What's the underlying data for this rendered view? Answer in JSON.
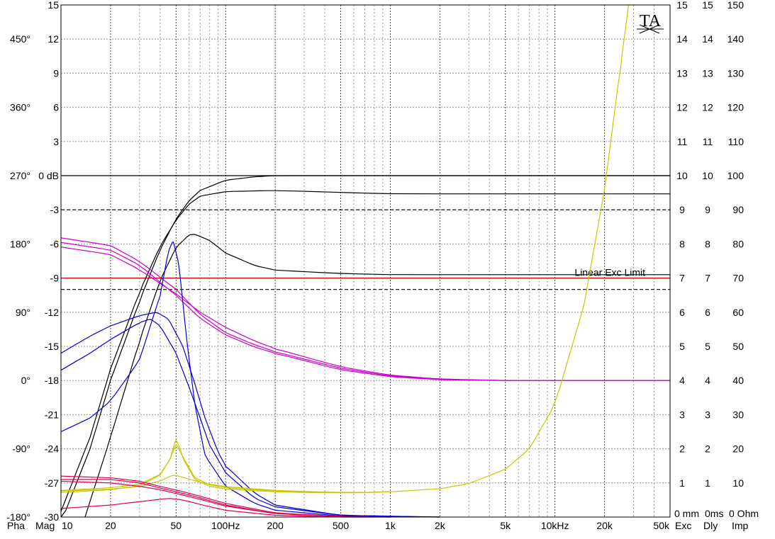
{
  "chart_data": {
    "type": "line",
    "title": "",
    "xscale": "log",
    "xlim": [
      10,
      50000
    ],
    "x_ticks": [
      {
        "v": 10,
        "label": "10"
      },
      {
        "v": 20,
        "label": "20"
      },
      {
        "v": 50,
        "label": "50"
      },
      {
        "v": 100,
        "label": "100Hz"
      },
      {
        "v": 200,
        "label": "200"
      },
      {
        "v": 500,
        "label": "500"
      },
      {
        "v": 1000,
        "label": "1k"
      },
      {
        "v": 2000,
        "label": "2k"
      },
      {
        "v": 5000,
        "label": "5k"
      },
      {
        "v": 10000,
        "label": "10kHz"
      },
      {
        "v": 20000,
        "label": "20k"
      },
      {
        "v": 50000,
        "label": "50k"
      }
    ],
    "mag_axis": {
      "label": "Mag",
      "ylim": [
        -30,
        15
      ],
      "ticks": [
        "15",
        "12",
        "9",
        "6",
        "3",
        "0 dB",
        "-3",
        "-6",
        "-9",
        "-12",
        "-15",
        "-18",
        "-21",
        "-24",
        "-27",
        "-30"
      ]
    },
    "phase_axis": {
      "label": "Pha",
      "ylim": [
        -180,
        495
      ],
      "ticks": [
        {
          "v": 450,
          "label": "450°"
        },
        {
          "v": 360,
          "label": "360°"
        },
        {
          "v": 270,
          "label": "270°"
        },
        {
          "v": 180,
          "label": "180°"
        },
        {
          "v": 90,
          "label": "90°"
        },
        {
          "v": 0,
          "label": "0°"
        },
        {
          "v": -90,
          "label": "-90°"
        },
        {
          "v": -180,
          "label": "-180°"
        }
      ]
    },
    "exc_axis": {
      "label": "Exc",
      "unit_label": "0 mm",
      "ticks": [
        "15",
        "14",
        "13",
        "12",
        "11",
        "10",
        "9",
        "8",
        "7",
        "6",
        "5",
        "4",
        "3",
        "2",
        "1"
      ]
    },
    "dly_axis": {
      "label": "Dly",
      "unit_label": "0ms",
      "ticks": [
        "15",
        "14",
        "13",
        "12",
        "11",
        "10",
        "9",
        "8",
        "7",
        "6",
        "5",
        "4",
        "3",
        "2",
        "1"
      ]
    },
    "imp_axis": {
      "label": "Imp",
      "unit_label": "0 Ohm",
      "ticks": [
        "150",
        "140",
        "130",
        "120",
        "110",
        "100",
        "90",
        "80",
        "70",
        "60",
        "50",
        "40",
        "30",
        "20",
        "10"
      ]
    },
    "grid": true,
    "logo": "TA",
    "reference_lines": [
      {
        "y_db": 0,
        "style": "solid",
        "color": "#000000"
      },
      {
        "y_db": -3,
        "style": "dashed",
        "color": "#000000"
      },
      {
        "y_db": -10,
        "style": "dashed",
        "color": "#000000"
      },
      {
        "y_db": -9,
        "style": "solid",
        "color": "#cc0000",
        "label": "Linear Exc Limit",
        "label_color": "#cc0033"
      }
    ],
    "colors": {
      "magnitude": "#000000",
      "phase": "#cc00cc",
      "delay": "#0000dd",
      "impedance": "#c8c800",
      "excursion": "#dd0055",
      "limit": "#cc0000",
      "grid": "#999999"
    },
    "series": [
      {
        "group": "magnitude",
        "unit": "dB",
        "points": [
          [
            10,
            -30.5
          ],
          [
            15,
            -24
          ],
          [
            20,
            -18
          ],
          [
            30,
            -11
          ],
          [
            40,
            -6.5
          ],
          [
            50,
            -3.8
          ],
          [
            60,
            -2.2
          ],
          [
            70,
            -1.3
          ],
          [
            100,
            -0.4
          ],
          [
            150,
            -0.1
          ],
          [
            200,
            0
          ],
          [
            1000,
            0
          ],
          [
            50000,
            0
          ]
        ]
      },
      {
        "group": "magnitude",
        "unit": "dB",
        "points": [
          [
            10,
            -29.5
          ],
          [
            15,
            -23
          ],
          [
            20,
            -17
          ],
          [
            30,
            -10.2
          ],
          [
            40,
            -6.2
          ],
          [
            50,
            -3.9
          ],
          [
            60,
            -2.5
          ],
          [
            70,
            -1.8
          ],
          [
            100,
            -1.4
          ],
          [
            200,
            -1.3
          ],
          [
            1000,
            -1.6
          ],
          [
            50000,
            -1.6
          ]
        ]
      },
      {
        "group": "magnitude",
        "unit": "dB",
        "points": [
          [
            14,
            -30
          ],
          [
            20,
            -23
          ],
          [
            30,
            -14.5
          ],
          [
            40,
            -9.2
          ],
          [
            50,
            -6.3
          ],
          [
            60,
            -5.2
          ],
          [
            65,
            -5.15
          ],
          [
            80,
            -5.7
          ],
          [
            100,
            -6.8
          ],
          [
            150,
            -7.9
          ],
          [
            200,
            -8.3
          ],
          [
            500,
            -8.6
          ],
          [
            1000,
            -8.7
          ],
          [
            50000,
            -8.7
          ]
        ]
      },
      {
        "group": "phase",
        "unit": "deg",
        "points": [
          [
            10,
            182
          ],
          [
            20,
            172
          ],
          [
            30,
            152
          ],
          [
            50,
            112
          ],
          [
            70,
            82
          ],
          [
            100,
            60
          ],
          [
            150,
            44
          ],
          [
            200,
            36
          ],
          [
            500,
            14
          ],
          [
            1000,
            5
          ],
          [
            2000,
            1
          ],
          [
            5000,
            0
          ],
          [
            50000,
            0
          ]
        ]
      },
      {
        "group": "phase",
        "unit": "deg",
        "points": [
          [
            10,
            188
          ],
          [
            20,
            178
          ],
          [
            30,
            157
          ],
          [
            50,
            120
          ],
          [
            70,
            87
          ],
          [
            100,
            63
          ],
          [
            150,
            47
          ],
          [
            200,
            38
          ],
          [
            500,
            16
          ],
          [
            1000,
            6
          ],
          [
            2000,
            1
          ],
          [
            5000,
            0
          ],
          [
            50000,
            0
          ]
        ]
      },
      {
        "group": "phase",
        "unit": "deg",
        "points": [
          [
            10,
            176
          ],
          [
            20,
            166
          ],
          [
            30,
            146
          ],
          [
            50,
            114
          ],
          [
            70,
            90
          ],
          [
            100,
            70
          ],
          [
            150,
            52
          ],
          [
            200,
            42
          ],
          [
            500,
            18
          ],
          [
            1000,
            7
          ],
          [
            2000,
            2
          ],
          [
            5000,
            0
          ],
          [
            50000,
            0
          ]
        ]
      },
      {
        "group": "delay",
        "unit": "ms",
        "points": [
          [
            10,
            4.3
          ],
          [
            15,
            4.8
          ],
          [
            20,
            5.2
          ],
          [
            30,
            5.7
          ],
          [
            35,
            5.8
          ],
          [
            40,
            5.6
          ],
          [
            50,
            4.8
          ],
          [
            60,
            3.8
          ],
          [
            70,
            2.9
          ],
          [
            80,
            2.1
          ],
          [
            100,
            1.3
          ],
          [
            150,
            0.55
          ],
          [
            200,
            0.3
          ],
          [
            500,
            0.05
          ],
          [
            2000,
            0
          ]
        ]
      },
      {
        "group": "delay",
        "unit": "ms",
        "points": [
          [
            10,
            4.8
          ],
          [
            15,
            5.3
          ],
          [
            20,
            5.6
          ],
          [
            30,
            5.9
          ],
          [
            38,
            6.0
          ],
          [
            45,
            5.8
          ],
          [
            55,
            5.0
          ],
          [
            65,
            3.9
          ],
          [
            75,
            2.9
          ],
          [
            90,
            1.9
          ],
          [
            100,
            1.5
          ],
          [
            150,
            0.7
          ],
          [
            200,
            0.35
          ],
          [
            500,
            0.05
          ],
          [
            2000,
            0
          ]
        ]
      },
      {
        "group": "delay",
        "unit": "ms",
        "points": [
          [
            10,
            2.5
          ],
          [
            15,
            2.9
          ],
          [
            20,
            3.4
          ],
          [
            30,
            4.6
          ],
          [
            40,
            6.5
          ],
          [
            45,
            7.8
          ],
          [
            48,
            8.1
          ],
          [
            52,
            7.4
          ],
          [
            58,
            5.2
          ],
          [
            65,
            3.3
          ],
          [
            75,
            1.8
          ],
          [
            100,
            0.9
          ],
          [
            150,
            0.4
          ],
          [
            200,
            0.2
          ],
          [
            500,
            0.03
          ],
          [
            2000,
            0
          ]
        ]
      },
      {
        "group": "impedance",
        "unit": "ohm",
        "points": [
          [
            10,
            7.8
          ],
          [
            20,
            8.6
          ],
          [
            30,
            9.6
          ],
          [
            40,
            12.5
          ],
          [
            46,
            17
          ],
          [
            50,
            23
          ],
          [
            56,
            16.5
          ],
          [
            65,
            11
          ],
          [
            80,
            9
          ],
          [
            100,
            8.2
          ],
          [
            200,
            7.4
          ],
          [
            400,
            7.1
          ],
          [
            700,
            7.15
          ],
          [
            1000,
            7.4
          ],
          [
            2000,
            8.3
          ],
          [
            3000,
            9.8
          ],
          [
            5000,
            14
          ],
          [
            7000,
            20
          ],
          [
            10000,
            33
          ],
          [
            15000,
            62
          ],
          [
            20000,
            96
          ],
          [
            25000,
            132
          ],
          [
            28000,
            150
          ]
        ]
      },
      {
        "group": "impedance",
        "unit": "ohm",
        "points": [
          [
            10,
            7.2
          ],
          [
            20,
            8.0
          ],
          [
            30,
            9.2
          ],
          [
            40,
            12.3
          ],
          [
            46,
            17
          ],
          [
            50,
            21.5
          ],
          [
            56,
            17
          ],
          [
            65,
            11.5
          ],
          [
            80,
            9.4
          ],
          [
            100,
            8.6
          ],
          [
            200,
            7.6
          ],
          [
            400,
            7.2
          ],
          [
            700,
            7.2
          ],
          [
            1000,
            7.45
          ]
        ]
      },
      {
        "group": "impedance",
        "unit": "ohm",
        "points": [
          [
            10,
            7.6
          ],
          [
            20,
            8.2
          ],
          [
            30,
            8.9
          ],
          [
            40,
            10.6
          ],
          [
            48,
            12.3
          ],
          [
            52,
            12
          ],
          [
            60,
            11.1
          ],
          [
            70,
            10.2
          ],
          [
            80,
            9.6
          ],
          [
            100,
            8.9
          ],
          [
            200,
            7.8
          ],
          [
            400,
            7.3
          ],
          [
            700,
            7.2
          ],
          [
            1000,
            7.45
          ]
        ]
      },
      {
        "group": "excursion",
        "unit": "mm",
        "points": [
          [
            10,
            1.2
          ],
          [
            20,
            1.15
          ],
          [
            30,
            1.05
          ],
          [
            40,
            0.9
          ],
          [
            60,
            0.7
          ],
          [
            100,
            0.4
          ],
          [
            200,
            0.12
          ],
          [
            500,
            0.02
          ],
          [
            1000,
            0
          ]
        ]
      },
      {
        "group": "excursion",
        "unit": "mm",
        "points": [
          [
            10,
            1.1
          ],
          [
            20,
            1.1
          ],
          [
            30,
            1.0
          ],
          [
            40,
            0.85
          ],
          [
            60,
            0.65
          ],
          [
            100,
            0.35
          ],
          [
            200,
            0.1
          ],
          [
            500,
            0.02
          ],
          [
            1000,
            0
          ]
        ]
      },
      {
        "group": "excursion",
        "unit": "mm",
        "points": [
          [
            10,
            1.05
          ],
          [
            20,
            1.0
          ],
          [
            30,
            0.9
          ],
          [
            40,
            0.8
          ],
          [
            60,
            0.6
          ],
          [
            100,
            0.32
          ],
          [
            200,
            0.1
          ],
          [
            500,
            0.02
          ],
          [
            1000,
            0
          ]
        ]
      },
      {
        "group": "excursion",
        "unit": "mm",
        "points": [
          [
            10,
            0.25
          ],
          [
            20,
            0.35
          ],
          [
            30,
            0.45
          ],
          [
            45,
            0.55
          ],
          [
            55,
            0.5
          ],
          [
            80,
            0.3
          ],
          [
            100,
            0.2
          ],
          [
            200,
            0.05
          ],
          [
            500,
            0
          ],
          [
            1000,
            0
          ]
        ]
      }
    ]
  }
}
